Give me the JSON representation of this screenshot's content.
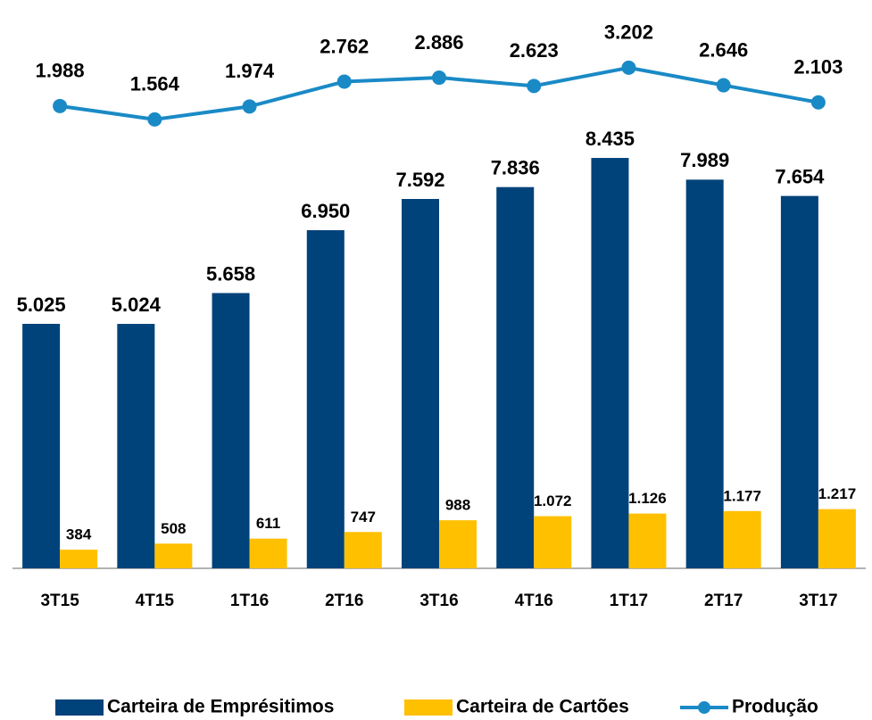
{
  "chart_data": {
    "type": "bar-line",
    "categories": [
      "3T15",
      "4T15",
      "1T16",
      "2T16",
      "3T16",
      "4T16",
      "1T17",
      "2T17",
      "3T17"
    ],
    "ylim": [
      0,
      11003
    ],
    "y2lim": [
      -12650,
      4300
    ],
    "series": [
      {
        "name": "Carteira de Emprésitimos",
        "color": "#00427a",
        "type": "bar",
        "values": [
          5025,
          5024,
          5658,
          6950,
          7592,
          7836,
          8435,
          7989,
          7654
        ],
        "value_labels": [
          "5.025",
          "5.024",
          "5.658",
          "6.950",
          "7.592",
          "7.836",
          "8.435",
          "7.989",
          "7.654"
        ]
      },
      {
        "name": "Carteira de Cartões",
        "color": "#ffc000",
        "type": "bar",
        "values": [
          384,
          508,
          611,
          747,
          988,
          1072,
          1126,
          1177,
          1217
        ],
        "value_labels": [
          "384",
          "508",
          "611",
          "747",
          "988",
          "1.072",
          "1.126",
          "1.177",
          "1.217"
        ]
      },
      {
        "name": "Produção",
        "color": "#1a8ac6",
        "type": "line",
        "axis": "y2",
        "values": [
          1988,
          1564,
          1974,
          2762,
          2886,
          2623,
          3202,
          2646,
          2103
        ],
        "value_labels": [
          "1.988",
          "1.564",
          "1.974",
          "2.762",
          "2.886",
          "2.623",
          "3.202",
          "2.646",
          "2.103"
        ]
      }
    ],
    "legend": "bottom"
  }
}
